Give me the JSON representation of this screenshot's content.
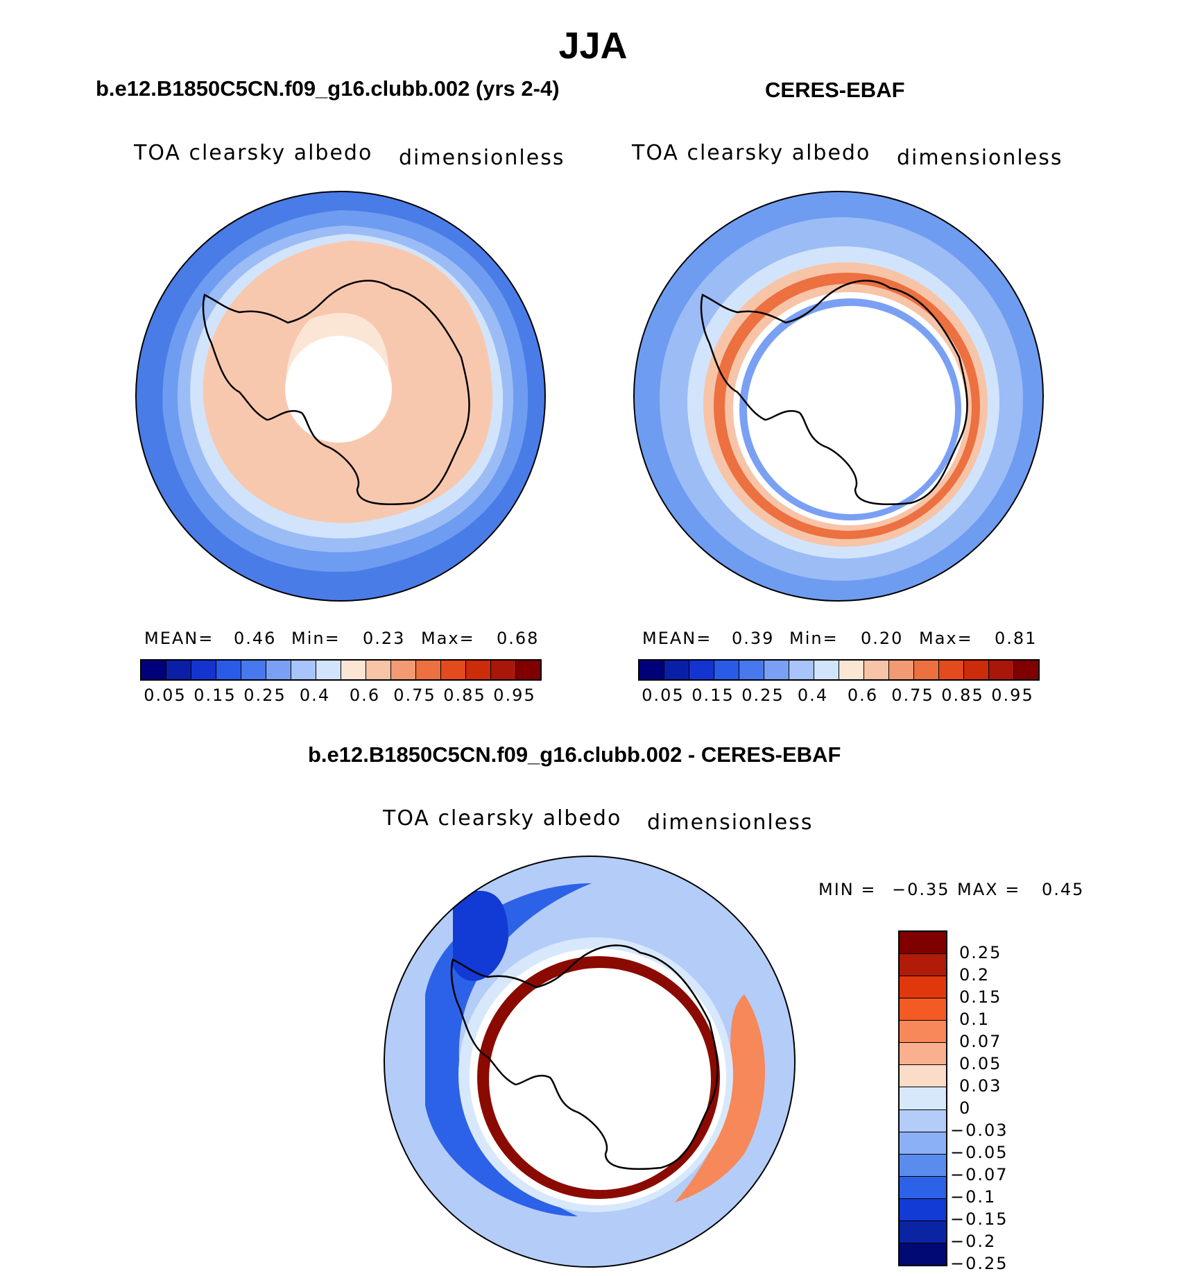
{
  "figure": {
    "title": "JJA"
  },
  "panels": {
    "model": {
      "title": "b.e12.B1850C5CN.f09_g16.clubb.002 (yrs 2-4)",
      "variable": "TOA clearsky albedo",
      "units": "dimensionless",
      "stats": {
        "mean_label": "MEAN=",
        "mean": "0.46",
        "min_label": "Min=",
        "min": "0.23",
        "max_label": "Max=",
        "max": "0.68"
      }
    },
    "obs": {
      "title": "CERES-EBAF",
      "variable": "TOA clearsky albedo",
      "units": "dimensionless",
      "stats": {
        "mean_label": "MEAN=",
        "mean": "0.39",
        "min_label": "Min=",
        "min": "0.20",
        "max_label": "Max=",
        "max": "0.81"
      }
    },
    "diff": {
      "title": "b.e12.B1850C5CN.f09_g16.clubb.002 - CERES-EBAF",
      "variable": "TOA clearsky albedo",
      "units": "dimensionless",
      "stats": {
        "min_label": "MIN =",
        "min": "−0.35",
        "max_label": "MAX =",
        "max": "0.45"
      }
    }
  },
  "colorbars": {
    "abs": {
      "colors": [
        "#00007a",
        "#0a1fa8",
        "#1434d0",
        "#2a5ae8",
        "#4878ee",
        "#7aa0f4",
        "#a8c4fa",
        "#d2e4fb",
        "#fbe6d6",
        "#f7c4a8",
        "#f19a74",
        "#ec7040",
        "#e34a1e",
        "#cc2c0a",
        "#a8170a",
        "#800000"
      ],
      "ticks": [
        "0.05",
        "0.15",
        "0.25",
        "0.4",
        "0.6",
        "0.75",
        "0.85",
        "0.95"
      ]
    },
    "diff": {
      "colors": [
        "#800000",
        "#b01c08",
        "#e0380c",
        "#f45a24",
        "#f7885a",
        "#f9b08e",
        "#fbdcc8",
        "#d8e8fc",
        "#b4ccf8",
        "#8cb0f4",
        "#5a8cee",
        "#2c62e8",
        "#123ad4",
        "#0a24a4",
        "#000a74"
      ],
      "ticks": [
        "0.25",
        "0.2",
        "0.15",
        "0.1",
        "0.07",
        "0.05",
        "0.03",
        "0",
        "−0.03",
        "−0.05",
        "−0.07",
        "−0.1",
        "−0.15",
        "−0.2",
        "−0.25"
      ]
    }
  },
  "map_fields": {
    "model": {
      "outer_ring": "#4a7ce8",
      "rings": [
        "#6e9cf0",
        "#9cbcf6",
        "#d2e4fb",
        "#f8c8ae"
      ],
      "pole": "#ffffff",
      "inner": "#fbe6d6"
    },
    "obs": {
      "outer_ring": "#6e9cf0",
      "rings": [
        "#9cbcf6",
        "#d2e4fb",
        "#f7c4a8",
        "#ec7040",
        "#ffffff",
        "#7aa0f4"
      ],
      "pole": "#ffffff"
    },
    "diff": {
      "outer_ring": "#b4ccf8",
      "rings": [
        "#2c62e8",
        "#f7885a",
        "#ffffff",
        "#8b0a00"
      ],
      "pole": "#ffffff"
    }
  }
}
